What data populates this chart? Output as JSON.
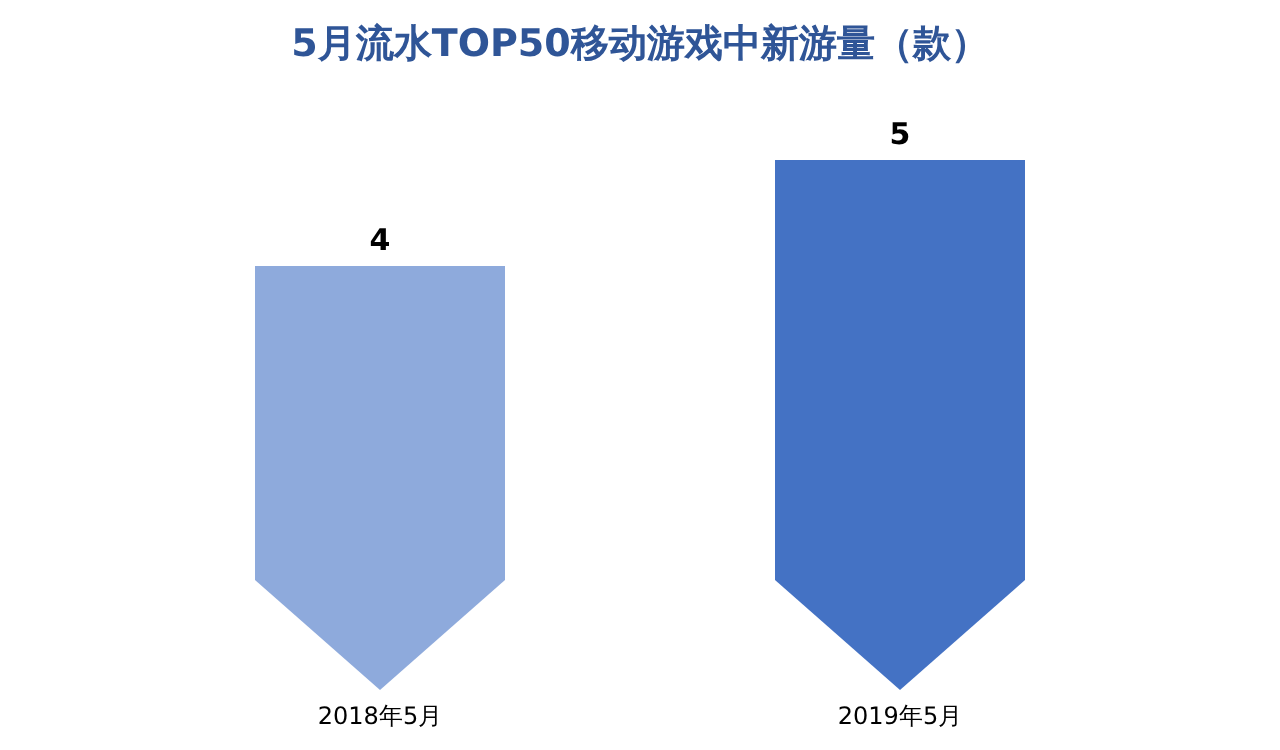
{
  "chart_data": {
    "type": "bar",
    "title": "5月流水TOP50移动游戏中新游量（款）",
    "categories": [
      "2018年5月",
      "2019年5月"
    ],
    "values": [
      4,
      5
    ],
    "colors": [
      "#8eaadc",
      "#4472c4"
    ],
    "data_labels": true
  }
}
